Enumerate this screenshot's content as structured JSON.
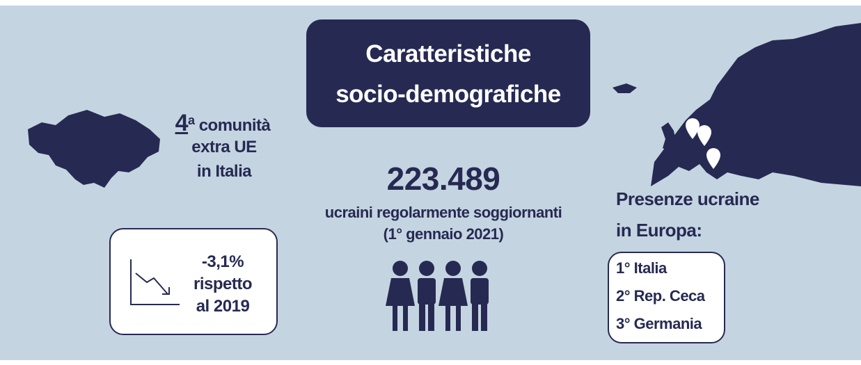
{
  "title": [
    "Caratteristiche",
    "socio-demografiche"
  ],
  "community": {
    "rank": "4",
    "suffix": "a",
    "lines": [
      "comunità",
      "extra UE",
      "in Italia"
    ]
  },
  "change": {
    "value": "-3,1%",
    "lines": [
      "rispetto",
      "al 2019"
    ]
  },
  "residents": {
    "count": "223.489",
    "label": "ucraini regolarmente soggiornanti",
    "date": "(1° gennaio 2021)"
  },
  "europe": {
    "heading": [
      "Presenze ucraine",
      "in Europa:"
    ],
    "ranking": [
      "1° Italia",
      "2° Rep. Ceca",
      "3° Germania"
    ]
  }
}
